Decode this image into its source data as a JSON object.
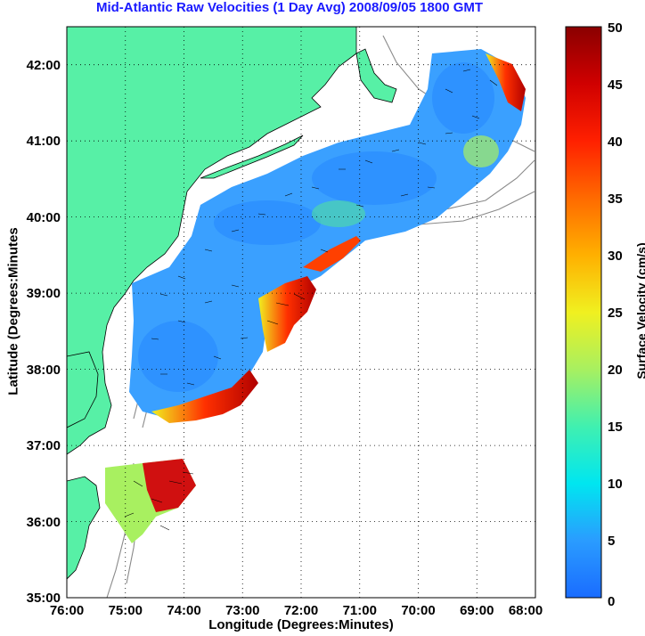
{
  "title": "Mid-Atlantic Raw Velocities (1 Day Avg) 2008/09/05 1800 GMT",
  "xaxis": {
    "label": "Longitude (Degrees:Minutes)",
    "ticks": [
      "76:00",
      "75:00",
      "74:00",
      "73:00",
      "72:00",
      "71:00",
      "70:00",
      "69:00",
      "68:00"
    ]
  },
  "yaxis": {
    "label": "Latitude (Degrees:Minutes",
    "ticks": [
      "42:00",
      "41:00",
      "40:00",
      "39:00",
      "38:00",
      "37:00",
      "36:00",
      "35:00"
    ]
  },
  "colorbar": {
    "label": "Surface Velocity (cm/s)",
    "ticks": [
      "50",
      "45",
      "40",
      "35",
      "30",
      "25",
      "20",
      "15",
      "10",
      "5",
      "0"
    ],
    "range": [
      0,
      50
    ]
  },
  "colors": {
    "land": "#57f0a6",
    "title": "#1a1aff",
    "ocean_slow": "#2a8cff",
    "ocean_fast": "#b00000"
  },
  "map_extent": {
    "lon": [
      -76,
      -68
    ],
    "lat": [
      35,
      42.5
    ]
  }
}
